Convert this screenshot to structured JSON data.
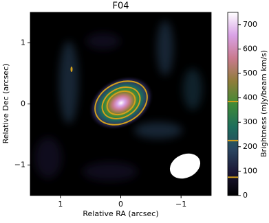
{
  "chart_data": {
    "type": "image",
    "title": "F04",
    "xlabel": "Relative RA (arcsec)",
    "ylabel": "Relative Dec (arcsec)",
    "xlim": [
      1.5,
      -1.5
    ],
    "xticks": [
      1,
      0,
      {
        "value": -1,
        "label": "−1"
      }
    ],
    "ylim": [
      -1.5,
      1.5
    ],
    "yticks": [
      {
        "value": -1,
        "label": "−1"
      },
      0,
      1
    ],
    "colorbar_label": "Brightness (mJy/beam km/s)",
    "clim": [
      0,
      750
    ],
    "cticks": [
      0,
      100,
      200,
      300,
      400,
      500,
      600,
      700
    ],
    "cmap": [
      "#000000",
      "#1b1634",
      "#2a4560",
      "#1d6e5c",
      "#3f8a36",
      "#907d3a",
      "#c97a8e",
      "#d9a2e6",
      "#ffffff"
    ],
    "contour_levels": [
      75,
      225,
      385
    ],
    "contour_color": "#d4a01c"
  }
}
